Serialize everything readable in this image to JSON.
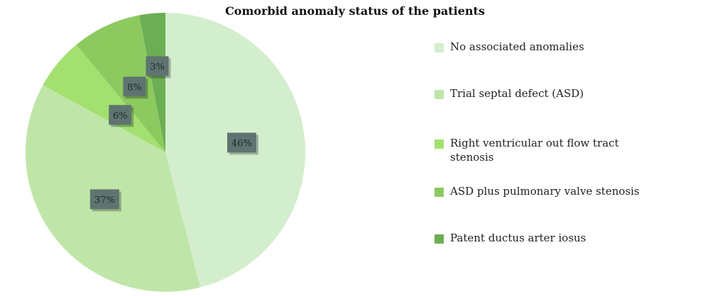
{
  "chart_data": {
    "type": "pie",
    "title": "Comorbid anomaly status of the patients",
    "start_angle_deg": 0,
    "direction": "clockwise",
    "slices": [
      {
        "label": "No associated anomalies",
        "value": 46,
        "display": "46%",
        "color": "#d3eecd"
      },
      {
        "label": "Trial septal defect (ASD)",
        "value": 37,
        "display": "37%",
        "color": "#bfe6a8"
      },
      {
        "label": "Right ventricular out flow tract stenosis",
        "value": 6,
        "display": "6%",
        "color": "#a3e070"
      },
      {
        "label": "ASD plus pulmonary valve stenosis",
        "value": 8,
        "display": "8%",
        "color": "#8cca60"
      },
      {
        "label": "Patent ductus arter iosus",
        "value": 3,
        "display": "3%",
        "color": "#6cae53"
      }
    ],
    "legend_position": "right",
    "label_box_color": "#5f7470"
  }
}
